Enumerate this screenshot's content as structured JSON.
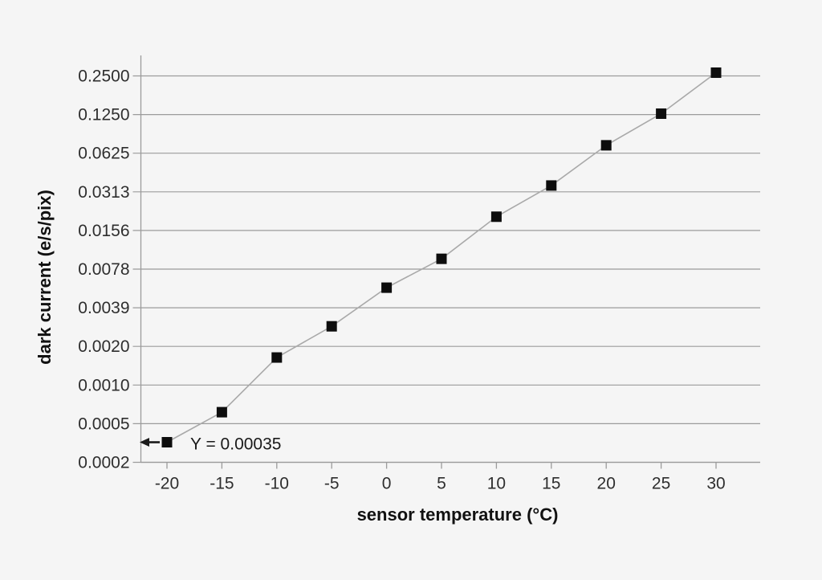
{
  "chart_data": {
    "type": "line",
    "title": "",
    "xlabel": "sensor temperature (°C)",
    "ylabel": "dark current (e/s/pix)",
    "x": [
      -20,
      -15,
      -10,
      -5,
      0,
      5,
      10,
      15,
      20,
      25,
      30
    ],
    "y": [
      0.00035,
      0.0006,
      0.0016,
      0.0028,
      0.0056,
      0.0094,
      0.02,
      0.035,
      0.072,
      0.127,
      0.265
    ],
    "x_ticks": [
      -20,
      -15,
      -10,
      -5,
      0,
      5,
      10,
      15,
      20,
      25,
      30
    ],
    "x_tick_labels": [
      "-20",
      "-15",
      "-10",
      "-5",
      "0",
      "5",
      "10",
      "15",
      "20",
      "25",
      "30"
    ],
    "y_scale": "log2",
    "y_tick_values": [
      0.25,
      0.125,
      0.0625,
      0.03125,
      0.015625,
      0.0078125,
      0.00390625,
      0.001953125,
      0.0009765625,
      0.00048828125,
      0.000244140625
    ],
    "y_tick_labels": [
      "0.2500",
      "0.1250",
      "0.0625",
      "0.0313",
      "0.0156",
      "0.0078",
      "0.0039",
      "0.0020",
      "0.0010",
      "0.0005",
      "0.0002"
    ],
    "xlim": [
      -22.5,
      34
    ],
    "ylim_log2_base": 0.000244140625,
    "grid": "horizontal",
    "legend": "none",
    "marker": "square",
    "annotation": {
      "text": "Y = 0.00035",
      "x": -20,
      "y": 0.00035,
      "arrow_direction": "left"
    },
    "colors": {
      "background": "#f5f5f5",
      "gridline": "#9b9b9b",
      "axis": "#9b9b9b",
      "line": "#a9a9a9",
      "marker": "#0d0d0d",
      "tick_label": "#2e2e2e",
      "axis_title": "#111111",
      "annotation": "#1a1a1a"
    }
  }
}
